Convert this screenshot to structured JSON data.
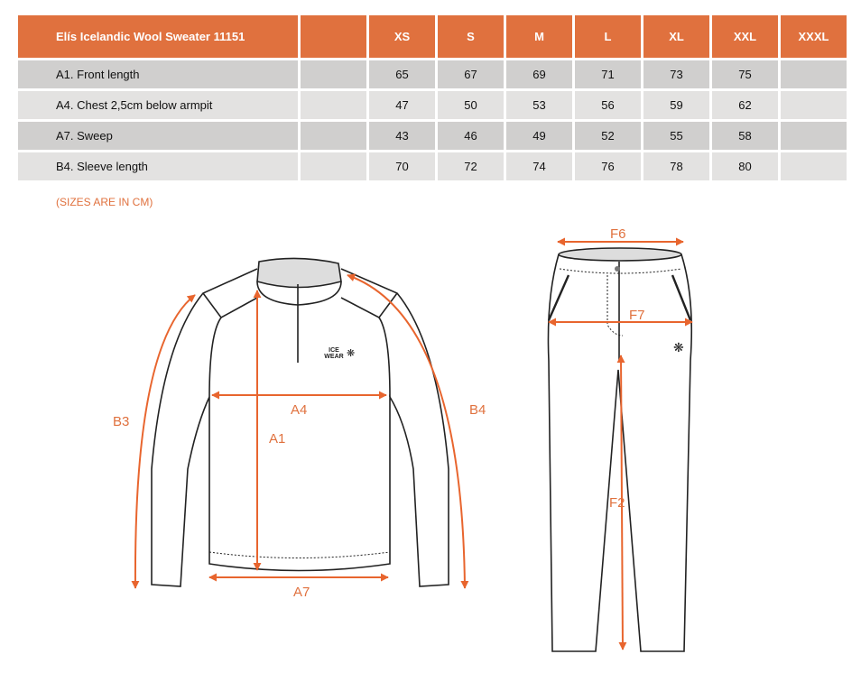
{
  "table": {
    "title": "Elís Icelandic Wool Sweater 11151",
    "sizes": [
      "XS",
      "S",
      "M",
      "L",
      "XL",
      "XXL",
      "XXXL"
    ],
    "rows": [
      {
        "label": "A1. Front length",
        "values": [
          "65",
          "67",
          "69",
          "71",
          "73",
          "75",
          ""
        ]
      },
      {
        "label": "A4. Chest 2,5cm below armpit",
        "values": [
          "47",
          "50",
          "53",
          "56",
          "59",
          "62",
          ""
        ]
      },
      {
        "label": "A7. Sweep",
        "values": [
          "43",
          "46",
          "49",
          "52",
          "55",
          "58",
          ""
        ]
      },
      {
        "label": "B4. Sleeve length",
        "values": [
          "70",
          "72",
          "74",
          "76",
          "78",
          "80",
          ""
        ]
      }
    ]
  },
  "note": "(SIZES ARE IN CM)",
  "diagram": {
    "accent": "#e0713e",
    "logo": "ICE WEAR",
    "labels": {
      "a1": "A1",
      "a4": "A4",
      "a7": "A7",
      "b3": "B3",
      "b4": "B4",
      "f6": "F6",
      "f7": "F7",
      "f2": "F2"
    }
  }
}
